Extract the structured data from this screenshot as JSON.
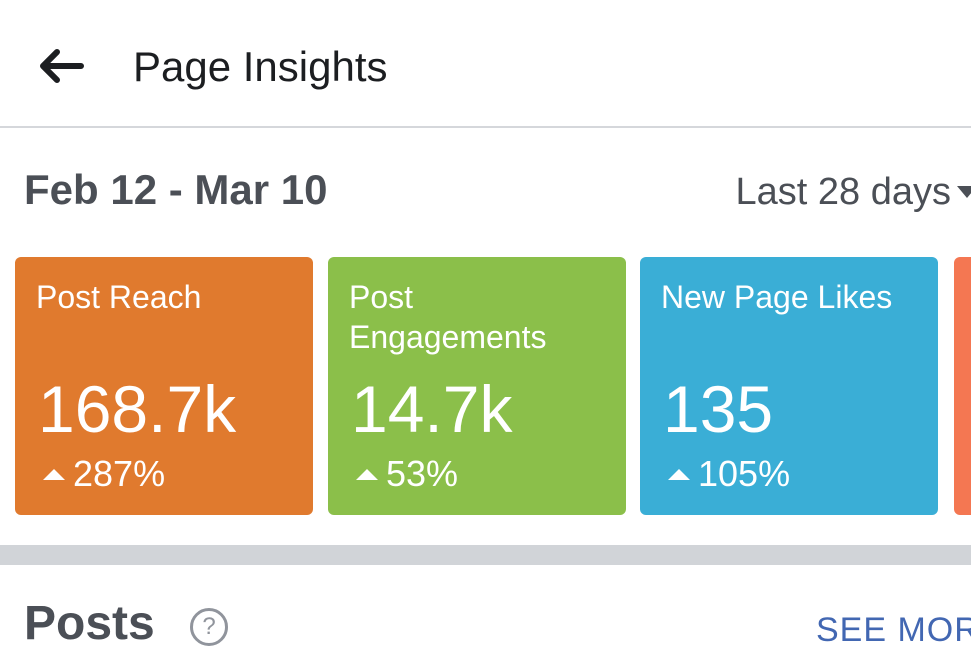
{
  "header": {
    "title": "Page Insights",
    "back_icon": "arrow-left-icon"
  },
  "summary": {
    "date_range": "Feb 12 - Mar 10",
    "period_label": "Last 28 days",
    "period_icon": "caret-down-icon"
  },
  "cards": [
    {
      "label": "Post Reach",
      "value": "168.7k",
      "change": "287%",
      "trend_icon": "up-triangle-icon",
      "color": "#e07a2e"
    },
    {
      "label": "Post Engagements",
      "value": "14.7k",
      "change": "53%",
      "trend_icon": "up-triangle-icon",
      "color": "#8bbf4a"
    },
    {
      "label": "New Page Likes",
      "value": "135",
      "change": "105%",
      "trend_icon": "up-triangle-icon",
      "color": "#3aaed6"
    },
    {
      "color": "#f47752"
    }
  ],
  "posts": {
    "title": "Posts",
    "info_icon": "question-circle-icon",
    "see_more": "SEE MORE"
  },
  "colors": {
    "divider": "#d5d7db",
    "section_separator": "#d1d4d8",
    "link": "#4267b2",
    "text_dark": "#4b4f56"
  }
}
